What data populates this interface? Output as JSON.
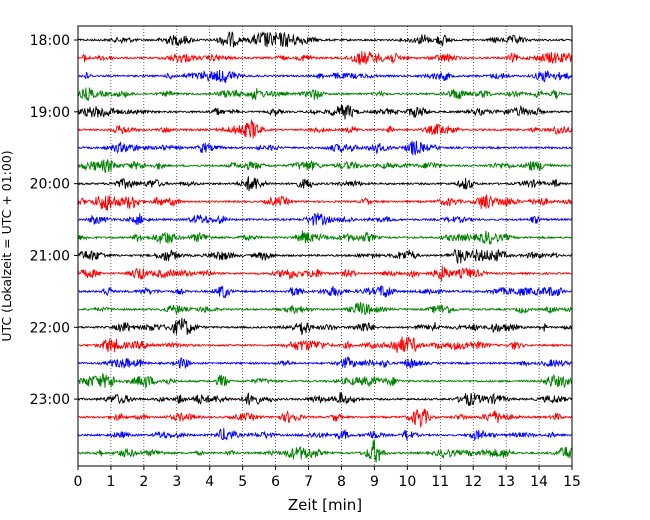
{
  "chart_data": {
    "type": "line",
    "title": "",
    "xlabel": "Zeit  [min]",
    "ylabel": "UTC (Lokalzeit = UTC + 01:00)",
    "xlim": [
      0,
      15
    ],
    "x_ticks": [
      0,
      1,
      2,
      3,
      4,
      5,
      6,
      7,
      8,
      9,
      10,
      11,
      12,
      13,
      14,
      15
    ],
    "y_tick_labels": [
      "18:00",
      "19:00",
      "20:00",
      "21:00",
      "22:00",
      "23:00"
    ],
    "grid": "vertical dotted lines at each minute",
    "trace_interval_minutes": 15,
    "traces": [
      {
        "start": "18:00",
        "color": "#000000"
      },
      {
        "start": "18:15",
        "color": "#ff0000"
      },
      {
        "start": "18:30",
        "color": "#0000ff"
      },
      {
        "start": "18:45",
        "color": "#008000"
      },
      {
        "start": "19:00",
        "color": "#000000"
      },
      {
        "start": "19:15",
        "color": "#ff0000"
      },
      {
        "start": "19:30",
        "color": "#0000ff"
      },
      {
        "start": "19:45",
        "color": "#008000"
      },
      {
        "start": "20:00",
        "color": "#000000"
      },
      {
        "start": "20:15",
        "color": "#ff0000"
      },
      {
        "start": "20:30",
        "color": "#0000ff"
      },
      {
        "start": "20:45",
        "color": "#008000"
      },
      {
        "start": "21:00",
        "color": "#000000"
      },
      {
        "start": "21:15",
        "color": "#ff0000"
      },
      {
        "start": "21:30",
        "color": "#0000ff"
      },
      {
        "start": "21:45",
        "color": "#008000"
      },
      {
        "start": "22:00",
        "color": "#000000"
      },
      {
        "start": "22:15",
        "color": "#ff0000"
      },
      {
        "start": "22:30",
        "color": "#0000ff"
      },
      {
        "start": "22:45",
        "color": "#008000"
      },
      {
        "start": "23:00",
        "color": "#000000"
      },
      {
        "start": "23:15",
        "color": "#ff0000"
      },
      {
        "start": "23:30",
        "color": "#0000ff"
      },
      {
        "start": "23:45",
        "color": "#008000"
      }
    ]
  }
}
